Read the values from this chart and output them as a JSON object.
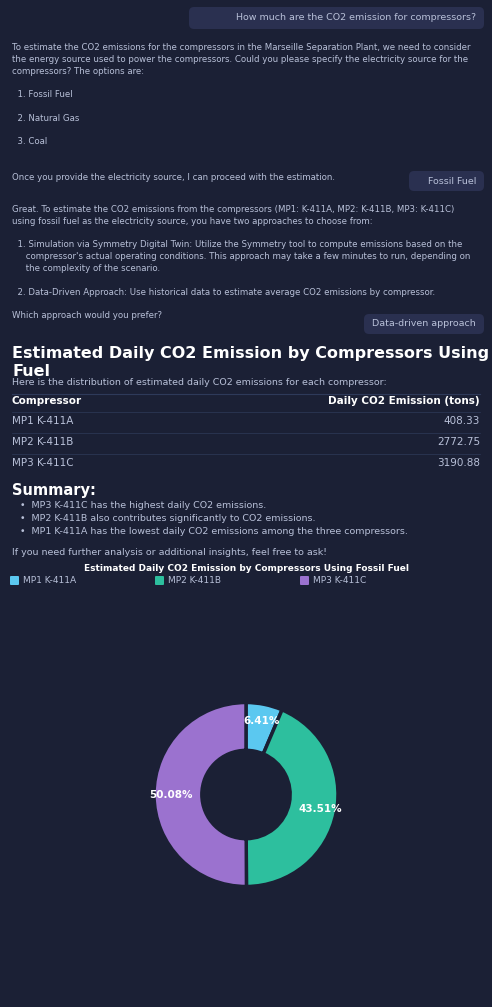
{
  "bg_color": "#1b2035",
  "text_color": "#b8c0d8",
  "white_text": "#ffffff",
  "bubble_user_bg": "#2a3050",
  "line_color": "#2e3a5a",
  "msg1_user": "How much are the CO2 emission for compressors?",
  "bot1_lines": [
    "To estimate the CO2 emissions for the compressors in the Marseille Separation Plant, we need to consider",
    "the energy source used to power the compressors. Could you please specify the electricity source for the",
    "compressors? The options are:",
    "",
    "  1. Fossil Fuel",
    "",
    "  2. Natural Gas",
    "",
    "  3. Coal",
    "",
    "",
    "Once you provide the electricity source, I can proceed with the estimation."
  ],
  "msg2_user": "Fossil Fuel",
  "bot2_lines": [
    "Great. To estimate the CO2 emissions from the compressors (MP1: K-411A, MP2: K-411B, MP3: K-411C)",
    "using fossil fuel as the electricity source, you have two approaches to choose from:",
    "",
    "  1. Simulation via Symmetry Digital Twin: Utilize the Symmetry tool to compute emissions based on the",
    "     compressor's actual operating conditions. This approach may take a few minutes to run, depending on",
    "     the complexity of the scenario.",
    "",
    "  2. Data-Driven Approach: Use historical data to estimate average CO2 emissions by compressor.",
    "",
    "Which approach would you prefer?"
  ],
  "msg3_user": "Data-driven approach",
  "result_title_line1": "Estimated Daily CO2 Emission by Compressors Using Fossil",
  "result_title_line2": "Fuel",
  "result_subtitle": "Here is the distribution of estimated daily CO2 emissions for each compressor:",
  "table_header_left": "Compressor",
  "table_header_right": "Daily CO2 Emission (tons)",
  "table_rows": [
    [
      "MP1 K-411A",
      "408.33"
    ],
    [
      "MP2 K-411B",
      "2772.75"
    ],
    [
      "MP3 K-411C",
      "3190.88"
    ]
  ],
  "summary_title": "Summary:",
  "summary_bullets": [
    "MP3 K-411C has the highest daily CO2 emissions.",
    "MP2 K-411B also contributes significantly to CO2 emissions.",
    "MP1 K-411A has the lowest daily CO2 emissions among the three compressors."
  ],
  "footer_note": "If you need further analysis or additional insights, feel free to ask!",
  "chart_title": "Estimated Daily CO2 Emission by Compressors Using Fossil Fuel",
  "pie_labels": [
    "MP1 K-411A",
    "MP2 K-411B",
    "MP3 K-411C"
  ],
  "pie_values": [
    408.33,
    2772.75,
    3190.88
  ],
  "pie_colors": [
    "#5bc8f0",
    "#2dbf9e",
    "#9b72cf"
  ],
  "pie_pct": [
    "6.41%",
    "43.51%",
    "50.08%"
  ]
}
